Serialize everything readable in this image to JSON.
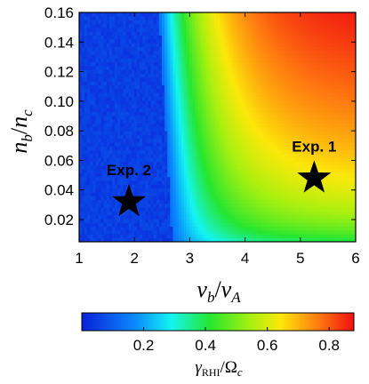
{
  "chart_data": {
    "type": "heatmap",
    "x_axis": {
      "label_main": "v",
      "label_sub": "b",
      "label_sep": "/",
      "label_main2": "v",
      "label_sub2": "A",
      "range": [
        1,
        6
      ],
      "ticks": [
        1,
        2,
        3,
        4,
        5,
        6
      ],
      "tick_labels": [
        "1",
        "2",
        "3",
        "4",
        "5",
        "6"
      ]
    },
    "y_axis": {
      "label_main": "n",
      "label_sub": "b",
      "label_sep": "/",
      "label_main2": "n",
      "label_sub2": "c",
      "range": [
        0.005,
        0.16
      ],
      "ticks": [
        0.02,
        0.04,
        0.06,
        0.08,
        0.1,
        0.12,
        0.14,
        0.16
      ],
      "tick_labels": [
        "0.02",
        "0.04",
        "0.06",
        "0.08",
        "0.10",
        "0.12",
        "0.14",
        "0.16"
      ]
    },
    "colorbar": {
      "label_main": "γ",
      "label_sub": "RHI",
      "label_sep": "/",
      "label_main2": "Ω",
      "label_sub2": "c",
      "range": [
        0,
        0.88
      ],
      "ticks": [
        0.2,
        0.4,
        0.6,
        0.8
      ],
      "tick_labels": [
        "0.2",
        "0.4",
        "0.6",
        "0.8"
      ]
    },
    "markers": [
      {
        "label": "Exp. 1",
        "x": 5.25,
        "y": 0.048,
        "symbol": "star"
      },
      {
        "label": "Exp. 2",
        "x": 1.9,
        "y": 0.032,
        "symbol": "star"
      }
    ],
    "grid": false,
    "legend": "none"
  }
}
